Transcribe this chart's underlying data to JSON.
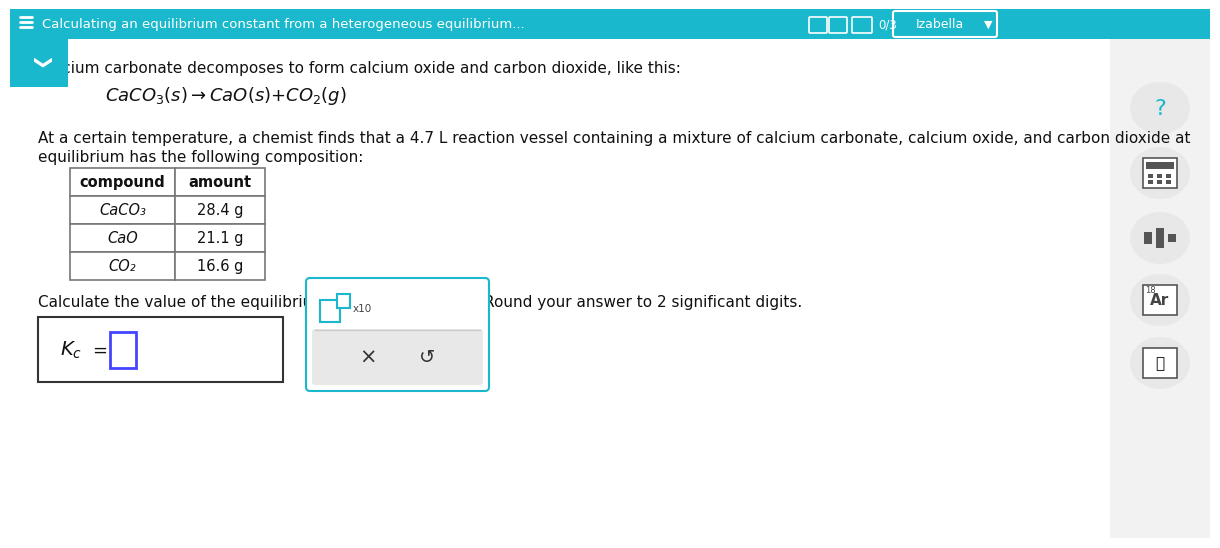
{
  "header_text": "Calculating an equilibrium constant from a heterogeneous equilibrium...",
  "header_bg": "#1ab8cc",
  "header_text_color": "#ffffff",
  "bg_color": "#ffffff",
  "body_text_color": "#222222",
  "teal_accent": "#1ab8cc",
  "intro_text": "Calcium carbonate decomposes to form calcium oxide and carbon dioxide, like this:",
  "paragraph_line1": "At a certain temperature, a chemist finds that a 4.7 L reaction vessel containing a mixture of calcium carbonate, calcium oxide, and carbon dioxide at",
  "paragraph_line2": "equilibrium has the following composition:",
  "table_headers": [
    "compound",
    "amount"
  ],
  "table_rows": [
    [
      "CaCO₃",
      "28.4 g"
    ],
    [
      "CaO",
      "21.1 g"
    ],
    [
      "CO₂",
      "16.6 g"
    ]
  ],
  "calc_text1": "Calculate the value of the equilibrium constant ",
  "calc_text2": " for this reaction. Round your answer to 2 significant digits.",
  "cross_symbol": "×",
  "undo_symbol": "↺",
  "answer_box_color": "#4444ff",
  "toolbar_border": "#1ab8cc",
  "score_text": "0/3",
  "username": "Izabella",
  "sidebar_bg": "#f2f2f2",
  "content_bg": "#ffffff"
}
